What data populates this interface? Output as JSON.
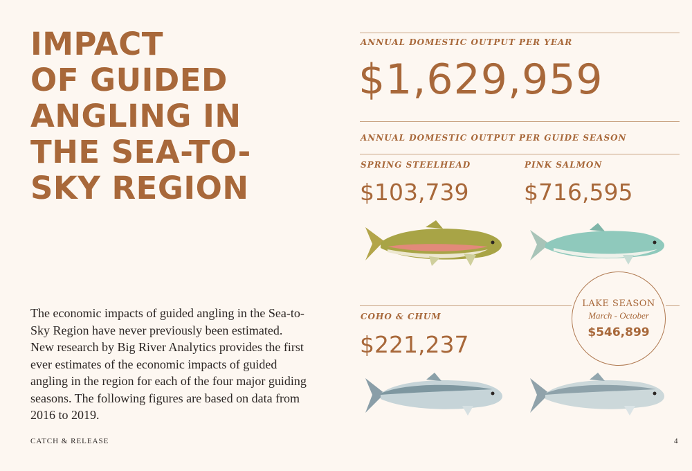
{
  "title": {
    "lines": [
      "IMPACT",
      "OF GUIDED",
      "ANGLING IN",
      "THE SEA-TO-",
      "SKY REGION"
    ]
  },
  "annual": {
    "label": "ANNUAL DOMESTIC OUTPUT PER YEAR",
    "value": "$1,629,959"
  },
  "per_season_label": "ANNUAL DOMESTIC OUTPUT PER GUIDE SEASON",
  "seasons": [
    {
      "label": "SPRING STEELHEAD",
      "value": "$103,739",
      "icon": "steelhead-trout-illustration"
    },
    {
      "label": "PINK SALMON",
      "value": "$716,595",
      "icon": "pink-salmon-illustration"
    },
    {
      "label": "COHO & CHUM",
      "value": "$221,237",
      "icon": "coho-salmon-illustration"
    }
  ],
  "lake": {
    "title": "LAKE SEASON",
    "subtitle": "March - October",
    "value": "$546,899",
    "icon": "chum-salmon-illustration"
  },
  "body": "The economic impacts of guided angling in the Sea-to-Sky Region have never previously been estimated. New research by Big River Analytics provides the first ever estimates of the economic impacts of guided angling in the region for each of the four major guiding seasons. The following figures are based on data from 2016 to 2019.",
  "footer": {
    "publication": "CATCH & RELEASE",
    "page": "4"
  },
  "colors": {
    "accent": "#a8683a",
    "background": "#fdf7f1",
    "body_text": "#2c2624"
  }
}
